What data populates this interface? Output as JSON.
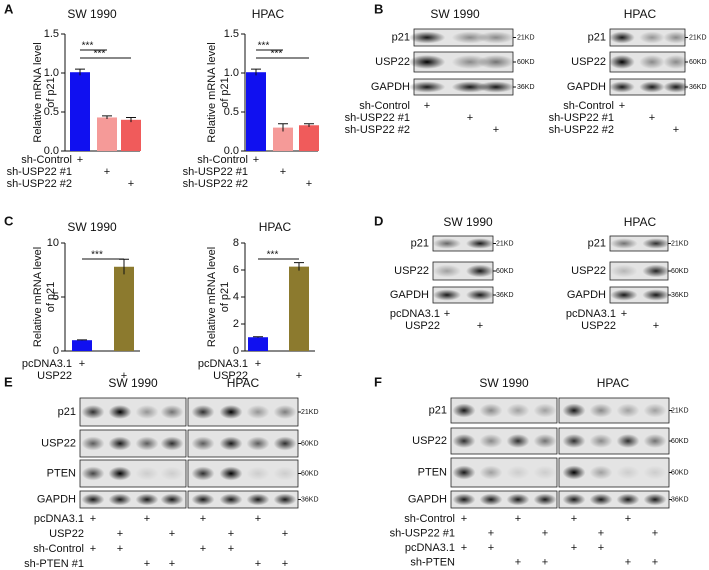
{
  "panel_letters": [
    "A",
    "B",
    "C",
    "D",
    "E",
    "F"
  ],
  "chart_data": [
    {
      "type": "bar",
      "title": "SW 1990",
      "ylabel": [
        "Relative mRNA level",
        "of p21"
      ],
      "categories": [
        null,
        null,
        null
      ],
      "values": [
        1.01,
        0.43,
        0.4
      ],
      "errors": [
        0.04,
        0.02,
        0.03
      ],
      "colors": [
        "#1010f0",
        "#f59a98",
        "#f05b5b"
      ],
      "ylim": [
        0,
        1.5
      ],
      "yticks": [
        {
          "value": 0,
          "label": "0.0"
        },
        {
          "value": 0.5,
          "label": "0.5"
        },
        {
          "value": 1,
          "label": "1.0"
        },
        {
          "value": 1.5,
          "label": "1.5"
        }
      ],
      "significance": [
        {
          "label": "***",
          "from": 0,
          "to": 1
        },
        {
          "label": "***",
          "from": 0,
          "to": 2
        }
      ],
      "conditions": [
        {
          "label": "sh-Control",
          "signs": [
            "+",
            null,
            null
          ]
        },
        {
          "label": "sh-USP22 #1",
          "signs": [
            null,
            "+",
            null
          ]
        },
        {
          "label": "sh-USP22 #2",
          "signs": [
            null,
            null,
            "+"
          ]
        }
      ]
    },
    {
      "type": "bar",
      "title": "HPAC",
      "ylabel": [
        "Relative mRNA level",
        "of p21"
      ],
      "categories": [
        null,
        null,
        null
      ],
      "values": [
        1.01,
        0.3,
        0.33
      ],
      "errors": [
        0.04,
        0.05,
        0.02
      ],
      "colors": [
        "#1010f0",
        "#f59a98",
        "#f05b5b"
      ],
      "ylim": [
        0,
        1.5
      ],
      "yticks": [
        {
          "value": 0,
          "label": "0.0"
        },
        {
          "value": 0.5,
          "label": "0.5"
        },
        {
          "value": 1,
          "label": "1.0"
        },
        {
          "value": 1.5,
          "label": "1.5"
        }
      ],
      "significance": [
        {
          "label": "***",
          "from": 0,
          "to": 1
        },
        {
          "label": "***",
          "from": 0,
          "to": 2
        }
      ],
      "conditions": [
        {
          "label": "sh-Control",
          "signs": [
            "+",
            null,
            null
          ]
        },
        {
          "label": "sh-USP22 #1",
          "signs": [
            null,
            "+",
            null
          ]
        },
        {
          "label": "sh-USP22 #2",
          "signs": [
            null,
            null,
            "+"
          ]
        }
      ]
    },
    {
      "type": "bar",
      "title": "SW 1990",
      "ylabel": [
        "Relative mRNA level",
        "of p21"
      ],
      "categories": [
        null,
        null
      ],
      "values": [
        1.0,
        7.8
      ],
      "errors": [
        0.03,
        0.7
      ],
      "colors": [
        "#1010f0",
        "#8c7a2e"
      ],
      "ylim": [
        0,
        10
      ],
      "yticks": [
        0,
        5,
        10
      ],
      "significance": [
        {
          "label": "***",
          "from": 0,
          "to": 1
        }
      ],
      "conditions": [
        {
          "label": "pcDNA3.1",
          "signs": [
            "+",
            null
          ]
        },
        {
          "label": "USP22",
          "signs": [
            null,
            "+"
          ]
        }
      ]
    },
    {
      "type": "bar",
      "title": "HPAC",
      "ylabel": [
        "Relative mRNA level",
        "of p21"
      ],
      "categories": [
        null,
        null
      ],
      "values": [
        1.02,
        6.25
      ],
      "errors": [
        0.04,
        0.3
      ],
      "colors": [
        "#1010f0",
        "#8c7a2e"
      ],
      "ylim": [
        0,
        8
      ],
      "yticks": [
        0,
        2,
        4,
        6,
        8
      ],
      "significance": [
        {
          "label": "***",
          "from": 0,
          "to": 1
        }
      ],
      "conditions": [
        {
          "label": "pcDNA3.1",
          "signs": [
            "+",
            null
          ]
        },
        {
          "label": "USP22",
          "signs": [
            null,
            "+"
          ]
        }
      ]
    }
  ],
  "blots": [
    {
      "titles": [
        "SW 1990"
      ],
      "proteins": [
        "p21",
        "USP22",
        "GAPDH"
      ],
      "sizes": [
        "21KD",
        "60KD",
        "36KD"
      ],
      "conditions": [
        {
          "label": "sh-Control",
          "signs": [
            "+",
            null,
            null
          ]
        },
        {
          "label": "sh-USP22 #1",
          "signs": [
            null,
            "+",
            null
          ]
        },
        {
          "label": "sh-USP22 #2",
          "signs": [
            null,
            null,
            "+"
          ]
        }
      ]
    },
    {
      "titles": [
        "HPAC"
      ],
      "proteins": [
        "p21",
        "USP22",
        "GAPDH"
      ],
      "sizes": [
        "21KD",
        "60KD",
        "36KD"
      ],
      "conditions": [
        {
          "label": "sh-Control",
          "signs": [
            "+",
            null,
            null
          ]
        },
        {
          "label": "sh-USP22 #1",
          "signs": [
            null,
            "+",
            null
          ]
        },
        {
          "label": "sh-USP22 #2",
          "signs": [
            null,
            null,
            "+"
          ]
        }
      ]
    },
    {
      "titles": [
        "SW 1990"
      ],
      "proteins": [
        "p21",
        "USP22",
        "GAPDH"
      ],
      "sizes": [
        "21KD",
        "60KD",
        "36KD"
      ],
      "conditions": [
        {
          "label": "pcDNA3.1",
          "signs": [
            "+",
            null
          ]
        },
        {
          "label": "USP22",
          "signs": [
            null,
            "+"
          ]
        }
      ]
    },
    {
      "titles": [
        "HPAC"
      ],
      "proteins": [
        "p21",
        "USP22",
        "GAPDH"
      ],
      "sizes": [
        "21KD",
        "60KD",
        "36KD"
      ],
      "conditions": [
        {
          "label": "pcDNA3.1",
          "signs": [
            "+",
            null
          ]
        },
        {
          "label": "USP22",
          "signs": [
            null,
            "+"
          ]
        }
      ]
    },
    {
      "titles": [
        "SW 1990",
        "HPAC"
      ],
      "proteins": [
        "p21",
        "USP22",
        "PTEN",
        "GAPDH"
      ],
      "sizes": [
        "21KD",
        "60KD",
        "60KD",
        "36KD"
      ],
      "conditions": [
        {
          "label": "pcDNA3.1",
          "signs": [
            "+",
            null,
            "+",
            null,
            "+",
            null,
            "+",
            null
          ]
        },
        {
          "label": "USP22",
          "signs": [
            null,
            "+",
            null,
            "+",
            null,
            "+",
            null,
            "+"
          ]
        },
        {
          "label": "sh-Control",
          "signs": [
            "+",
            "+",
            null,
            null,
            "+",
            "+",
            null,
            null
          ]
        },
        {
          "label": "sh-PTEN #1",
          "signs": [
            null,
            null,
            "+",
            "+",
            null,
            null,
            "+",
            "+"
          ]
        }
      ]
    },
    {
      "titles": [
        "SW 1990",
        "HPAC"
      ],
      "proteins": [
        "p21",
        "USP22",
        "PTEN",
        "GAPDH"
      ],
      "sizes": [
        "21KD",
        "60KD",
        "60KD",
        "36KD"
      ],
      "conditions": [
        {
          "label": "sh-Control",
          "signs": [
            "+",
            null,
            "+",
            null,
            "+",
            null,
            "+",
            null
          ]
        },
        {
          "label": "sh-USP22 #1",
          "signs": [
            null,
            "+",
            null,
            "+",
            null,
            "+",
            null,
            "+"
          ]
        },
        {
          "label": "pcDNA3.1",
          "signs": [
            "+",
            "+",
            null,
            null,
            "+",
            "+",
            null,
            null
          ]
        },
        {
          "label": "sh-PTEN",
          "signs": [
            null,
            null,
            "+",
            "+",
            null,
            null,
            "+",
            "+"
          ]
        }
      ]
    }
  ]
}
